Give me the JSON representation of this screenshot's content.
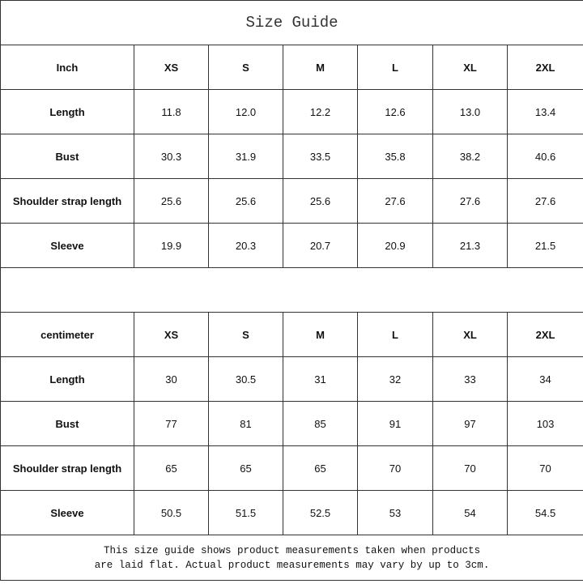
{
  "title": "Size Guide",
  "tables": [
    {
      "unit_label": "Inch",
      "sizes": [
        "XS",
        "S",
        "M",
        "L",
        "XL",
        "2XL"
      ],
      "rows": [
        {
          "label": "Length",
          "values": [
            "11.8",
            "12.0",
            "12.2",
            "12.6",
            "13.0",
            "13.4"
          ]
        },
        {
          "label": "Bust",
          "values": [
            "30.3",
            "31.9",
            "33.5",
            "35.8",
            "38.2",
            "40.6"
          ]
        },
        {
          "label": "Shoulder strap length",
          "values": [
            "25.6",
            "25.6",
            "25.6",
            "27.6",
            "27.6",
            "27.6"
          ]
        },
        {
          "label": "Sleeve",
          "values": [
            "19.9",
            "20.3",
            "20.7",
            "20.9",
            "21.3",
            "21.5"
          ]
        }
      ]
    },
    {
      "unit_label": "centimeter",
      "sizes": [
        "XS",
        "S",
        "M",
        "L",
        "XL",
        "2XL"
      ],
      "rows": [
        {
          "label": "Length",
          "values": [
            "30",
            "30.5",
            "31",
            "32",
            "33",
            "34"
          ]
        },
        {
          "label": "Bust",
          "values": [
            "77",
            "81",
            "85",
            "91",
            "97",
            "103"
          ]
        },
        {
          "label": "Shoulder strap length",
          "values": [
            "65",
            "65",
            "65",
            "70",
            "70",
            "70"
          ]
        },
        {
          "label": "Sleeve",
          "values": [
            "50.5",
            "51.5",
            "52.5",
            "53",
            "54",
            "54.5"
          ]
        }
      ]
    }
  ],
  "note_line1": "This size guide shows product measurements taken when products",
  "note_line2": "are laid flat. Actual product measurements may vary by up to 3cm."
}
